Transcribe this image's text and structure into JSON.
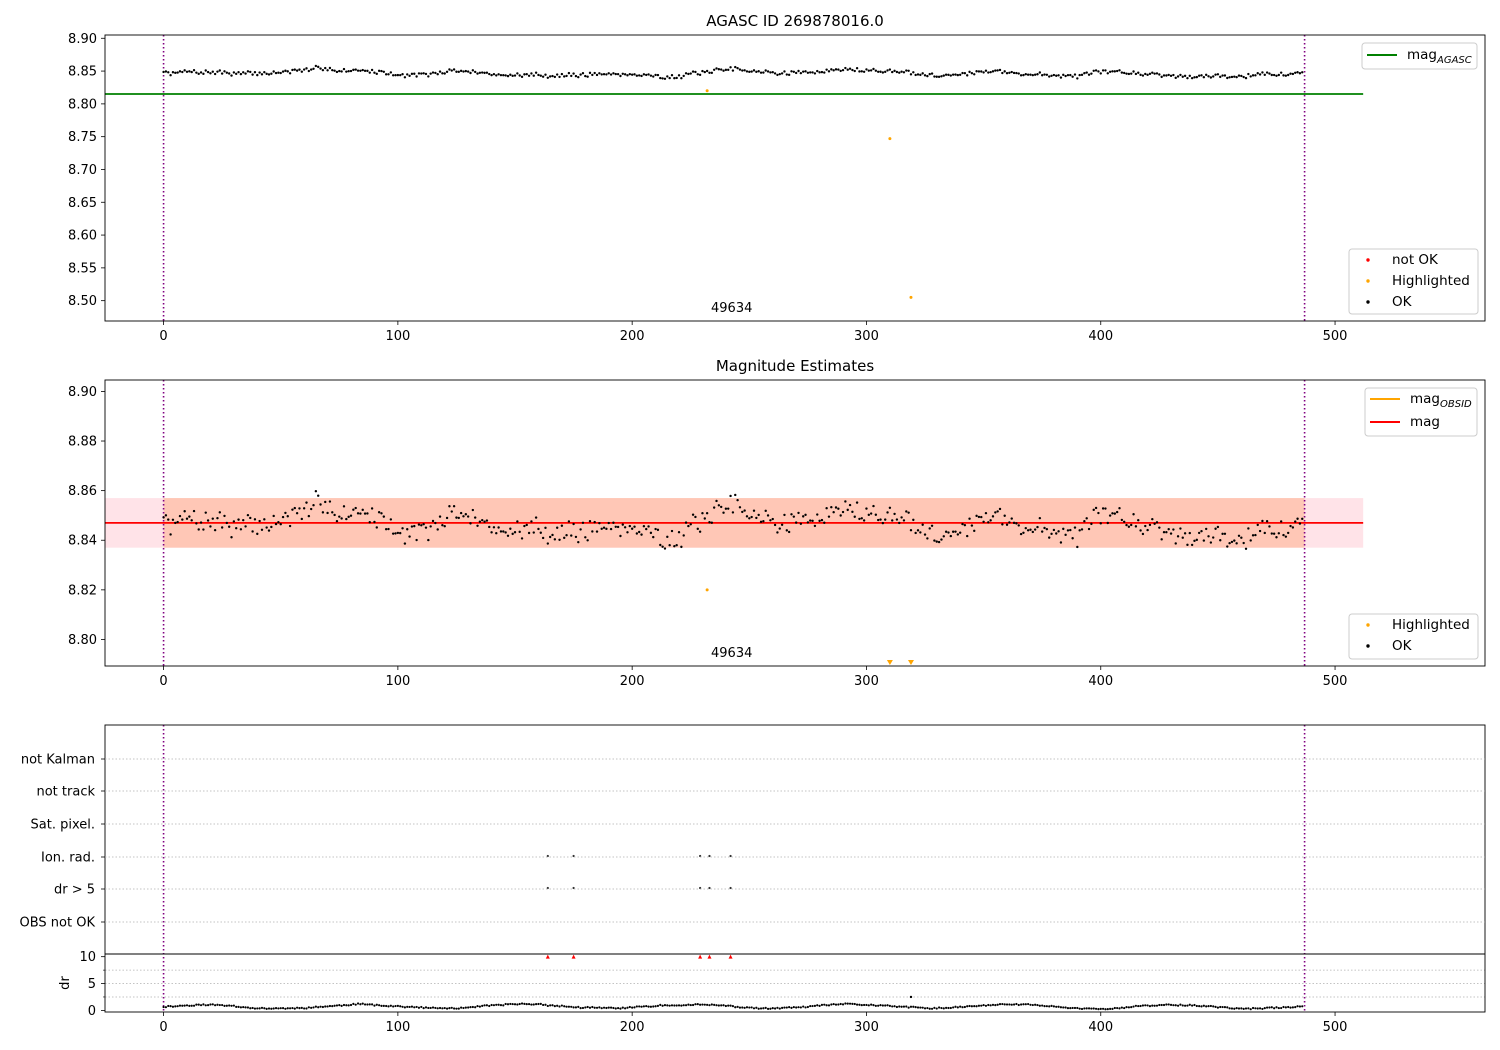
{
  "chart_data": [
    {
      "type": "scatter",
      "title": "AGASC ID 269878016.0",
      "xlim": [
        -25,
        564
      ],
      "ylim": [
        8.469,
        8.905
      ],
      "xticks": [
        0,
        100,
        200,
        300,
        400,
        500
      ],
      "yticks": [
        8.5,
        8.55,
        8.6,
        8.65,
        8.7,
        8.75,
        8.8,
        8.85,
        8.9
      ],
      "ytick_labels": [
        "8.50",
        "8.55",
        "8.60",
        "8.65",
        "8.70",
        "8.75",
        "8.80",
        "8.85",
        "8.90"
      ],
      "vlines": [
        0,
        487
      ],
      "hline": {
        "name_main": "mag",
        "name_sub": "AGASC",
        "y": 8.815,
        "x_range": [
          -25,
          512
        ],
        "color": "#008000"
      },
      "annotation": {
        "text": "49634",
        "x": 243,
        "y": 8.488
      },
      "legend_top": [
        {
          "main": "mag",
          "sub": "AGASC",
          "color": "#008000",
          "kind": "line"
        }
      ],
      "legend_bottom": [
        {
          "label": "not OK",
          "color": "#ff0000",
          "kind": "dot"
        },
        {
          "label": "Highlighted",
          "color": "#ffa500",
          "kind": "dot"
        },
        {
          "label": "OK",
          "color": "#000000",
          "kind": "dot"
        }
      ],
      "series": [
        {
          "name": "OK",
          "color": "#000000",
          "n": 487,
          "x_start": 0,
          "x_step": 1,
          "base": 8.847,
          "trend": 0.003,
          "noise": 0.0085
        },
        {
          "name": "Highlighted",
          "color": "#ffa500",
          "points": [
            [
              232,
              8.82
            ],
            [
              310,
              8.747
            ],
            [
              319,
              8.505
            ]
          ]
        }
      ]
    },
    {
      "type": "scatter",
      "title": "Magnitude Estimates",
      "xlim": [
        -25,
        564
      ],
      "ylim": [
        8.7893,
        8.9046
      ],
      "xticks": [
        0,
        100,
        200,
        300,
        400,
        500
      ],
      "yticks": [
        8.8,
        8.82,
        8.84,
        8.86,
        8.88,
        8.9
      ],
      "ytick_labels": [
        "8.80",
        "8.82",
        "8.84",
        "8.86",
        "8.88",
        "8.90"
      ],
      "vlines": [
        0,
        487
      ],
      "mean": {
        "name": "mag",
        "y": 8.847,
        "x_range": [
          -25,
          512
        ],
        "color": "#ff0000"
      },
      "bands": [
        {
          "y": [
            8.837,
            8.857
          ],
          "x_range": [
            -25,
            512
          ],
          "color": "#ffc0cb"
        },
        {
          "y": [
            8.837,
            8.857
          ],
          "x_range": [
            0,
            487
          ],
          "color": "#ffa57a"
        }
      ],
      "obsid_line": {
        "name_main": "mag",
        "name_sub": "OBSID",
        "y": 8.847,
        "x_range": [
          0,
          487
        ],
        "color": "#ffa500"
      },
      "annotation": {
        "text": "49634",
        "x": 243,
        "y": 8.794
      },
      "out_of_range_markers": [
        310,
        319
      ],
      "legend_top": [
        {
          "main": "mag",
          "sub": "OBSID",
          "color": "#ffa500",
          "kind": "line"
        },
        {
          "main": "mag",
          "sub": "",
          "color": "#ff0000",
          "kind": "line"
        }
      ],
      "legend_bottom": [
        {
          "label": "Highlighted",
          "color": "#ffa500",
          "kind": "dot"
        },
        {
          "label": "OK",
          "color": "#000000",
          "kind": "dot"
        }
      ],
      "series": [
        {
          "name": "OK",
          "color": "#000000",
          "n": 487,
          "x_start": 0,
          "x_step": 1,
          "base": 8.847,
          "trend": 0,
          "noise": 0.009
        },
        {
          "name": "Highlighted",
          "color": "#ffa500",
          "points": [
            [
              232,
              8.82
            ]
          ]
        }
      ]
    },
    {
      "type": "scatter",
      "title": "",
      "xlim": [
        -25,
        564
      ],
      "xticks": [
        0,
        100,
        200,
        300,
        400,
        500
      ],
      "vlines": [
        0,
        487
      ],
      "flag_rows": [
        "not Kalman",
        "not track",
        "Sat. pixel.",
        "Ion. rad.",
        "dr > 5",
        "OBS not OK"
      ],
      "flag_points": [
        {
          "row": "Ion. rad.",
          "x": [
            164,
            175,
            229,
            233,
            242
          ]
        },
        {
          "row": "dr > 5",
          "x": [
            164,
            175,
            229,
            233,
            242
          ]
        }
      ],
      "dr_axis": {
        "ylabel": "dr",
        "ylim": [
          -0.3,
          10.5
        ],
        "yticks": [
          0,
          5,
          10
        ],
        "ytick_labels": [
          "0",
          "5",
          "10"
        ],
        "grid_y": [
          2.5,
          5,
          7.5
        ],
        "series": [
          {
            "name": "dr",
            "color": "#000000",
            "n": 487,
            "x_start": 0,
            "x_step": 1,
            "base": 0.7,
            "noise": 0.2
          },
          {
            "name": "dr outlier",
            "color": "#000000",
            "points": [
              [
                319,
                2.5
              ]
            ]
          },
          {
            "name": "dr > 10",
            "color": "#ff0000",
            "marker": "triangle",
            "points": [
              [
                164,
                10
              ],
              [
                175,
                10
              ],
              [
                229,
                10
              ],
              [
                233,
                10
              ],
              [
                242,
                10
              ]
            ]
          }
        ]
      }
    }
  ]
}
